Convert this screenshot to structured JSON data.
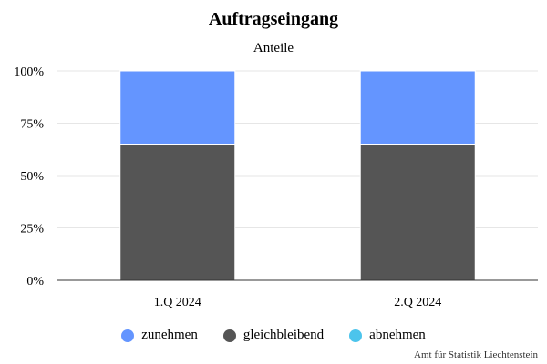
{
  "chart_data": {
    "type": "bar",
    "stacked": true,
    "normalized": true,
    "title": "Auftragseingang",
    "subtitle": "Anteile",
    "categories": [
      "1.Q 2024",
      "2.Q 2024"
    ],
    "series": [
      {
        "name": "zunehmen",
        "color": "#6495ff",
        "values": [
          35,
          35
        ]
      },
      {
        "name": "gleichbleibend",
        "color": "#555555",
        "values": [
          65,
          65
        ]
      },
      {
        "name": "abnehmen",
        "color": "#4cc4ec",
        "values": [
          0,
          0
        ]
      }
    ],
    "stack_order_bottom_to_top": [
      "gleichbleibend",
      "zunehmen",
      "abnehmen"
    ],
    "ylim": [
      0,
      100
    ],
    "yticks": [
      "0%",
      "25%",
      "50%",
      "75%",
      "100%"
    ],
    "grid": true,
    "legend_position": "bottom"
  },
  "credit": "Amt für Statistik Liechtenstein"
}
